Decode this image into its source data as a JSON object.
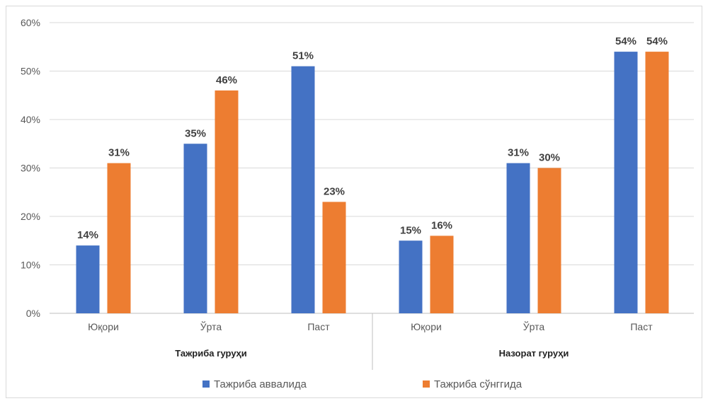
{
  "chart_data": {
    "type": "bar",
    "title": "",
    "xlabel": "",
    "ylabel": "",
    "ylim": [
      0,
      60
    ],
    "yticks": [
      0,
      10,
      20,
      30,
      40,
      50,
      60
    ],
    "ytick_suffix": "%",
    "grid": true,
    "legend_position": "bottom",
    "categories": [
      "Юқори",
      "Ўрта",
      "Паст",
      "Юқори",
      "Ўрта",
      "Паст"
    ],
    "groups": [
      {
        "label": "Тажриба гуруҳи",
        "span": [
          0,
          2
        ]
      },
      {
        "label": "Назорат гуруҳи",
        "span": [
          3,
          5
        ]
      }
    ],
    "series": [
      {
        "name": "Тажриба аввалида",
        "color": "#4472C4",
        "values": [
          14,
          35,
          51,
          15,
          31,
          54
        ]
      },
      {
        "name": "Тажриба сўнггида",
        "color": "#ED7D31",
        "values": [
          31,
          46,
          23,
          16,
          30,
          54
        ]
      }
    ],
    "data_label_suffix": "%"
  }
}
